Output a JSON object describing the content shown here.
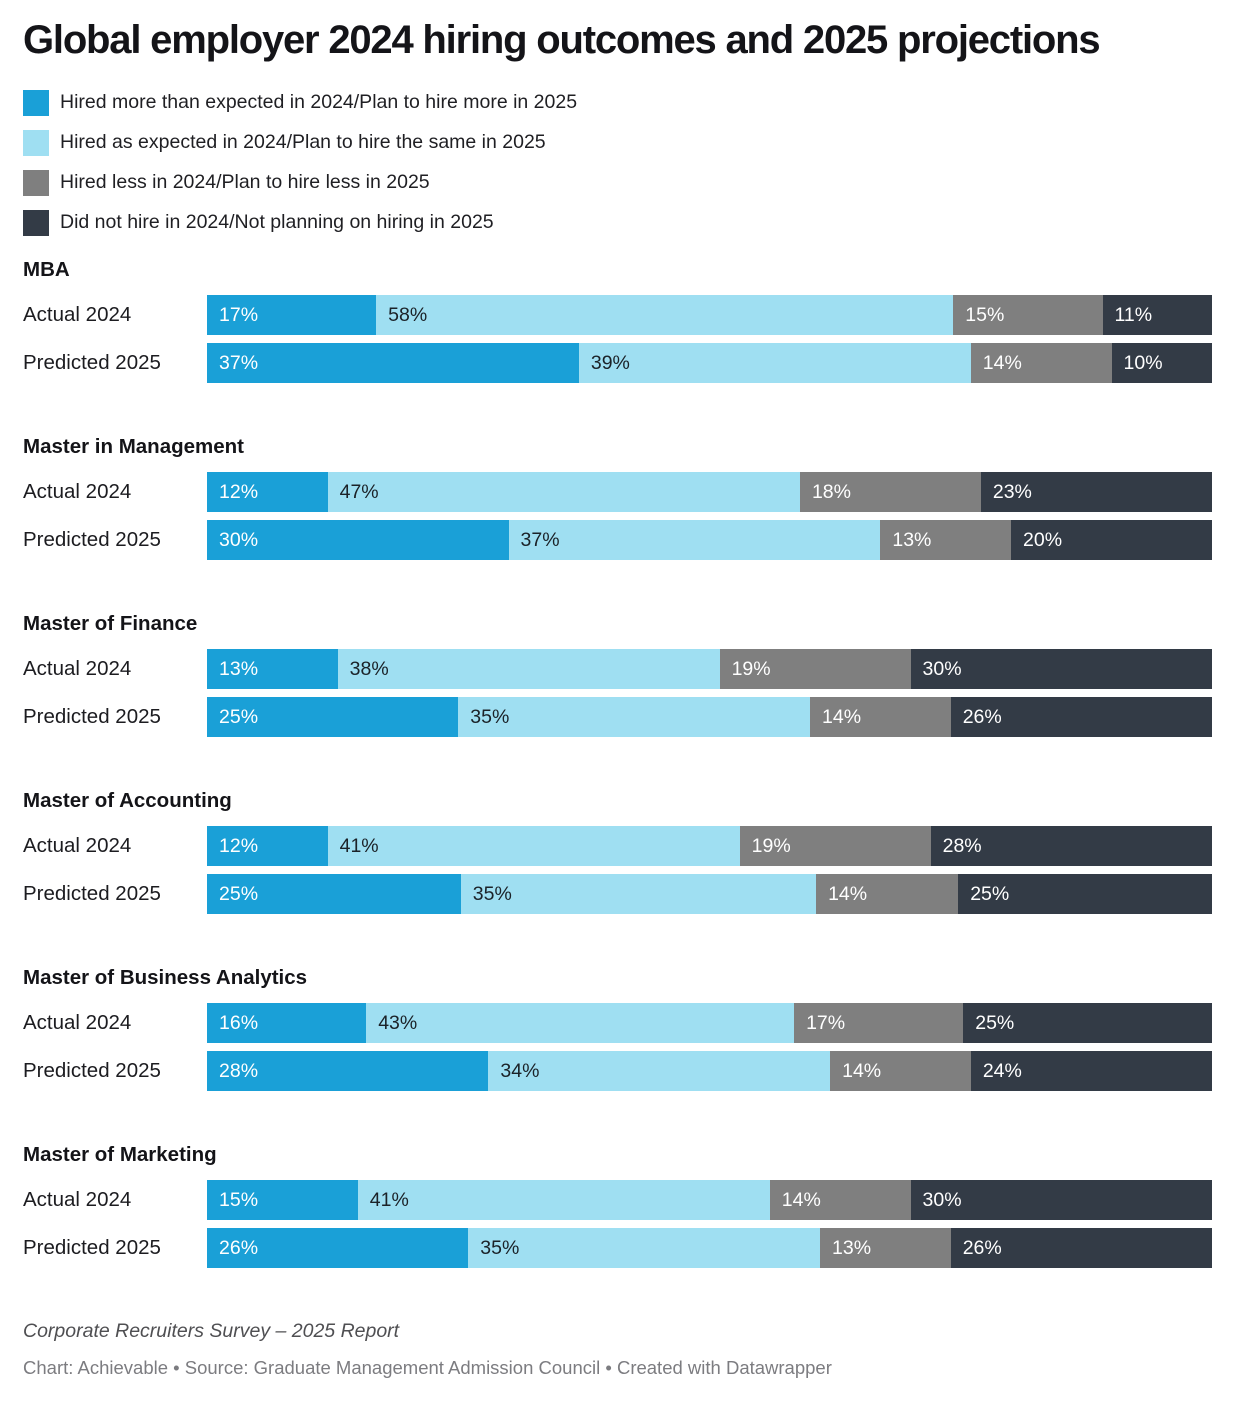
{
  "title": "Global employer 2024 hiring outcomes and 2025 projections",
  "colors": {
    "series": [
      "#1aa0d7",
      "#9fdff2",
      "#7f7f7f",
      "#333b46"
    ],
    "segment_label": [
      "#ffffff",
      "#1b2228",
      "#ffffff",
      "#ffffff"
    ],
    "background": "#ffffff"
  },
  "legend": {
    "items": [
      {
        "label": "Hired more than expected in 2024/Plan to hire more in 2025",
        "color": "#1aa0d7"
      },
      {
        "label": "Hired as expected in 2024/Plan to hire the same in 2025",
        "color": "#9fdff2"
      },
      {
        "label": "Hired less in 2024/Plan to hire less in 2025",
        "color": "#7f7f7f"
      },
      {
        "label": "Did not hire in 2024/Not planning on hiring in 2025",
        "color": "#333b46"
      }
    ]
  },
  "chart_data": {
    "type": "bar",
    "orientation": "horizontal",
    "stacked": true,
    "value_suffix": "%",
    "axis_range": [
      0,
      100
    ],
    "grid": false,
    "legend_position": "top-left",
    "series_labels": [
      "Hired more than expected in 2024/Plan to hire more in 2025",
      "Hired as expected in 2024/Plan to hire the same in 2025",
      "Hired less in 2024/Plan to hire less in 2025",
      "Did not hire in 2024/Not planning on hiring in 2025"
    ],
    "groups": [
      {
        "name": "MBA",
        "rows": [
          {
            "label": "Actual 2024",
            "values": [
              17,
              58,
              15,
              11
            ]
          },
          {
            "label": "Predicted 2025",
            "values": [
              37,
              39,
              14,
              10
            ]
          }
        ]
      },
      {
        "name": "Master in Management",
        "rows": [
          {
            "label": "Actual 2024",
            "values": [
              12,
              47,
              18,
              23
            ]
          },
          {
            "label": "Predicted 2025",
            "values": [
              30,
              37,
              13,
              20
            ]
          }
        ]
      },
      {
        "name": "Master of Finance",
        "rows": [
          {
            "label": "Actual 2024",
            "values": [
              13,
              38,
              19,
              30
            ]
          },
          {
            "label": "Predicted 2025",
            "values": [
              25,
              35,
              14,
              26
            ]
          }
        ]
      },
      {
        "name": "Master of Accounting",
        "rows": [
          {
            "label": "Actual 2024",
            "values": [
              12,
              41,
              19,
              28
            ]
          },
          {
            "label": "Predicted 2025",
            "values": [
              25,
              35,
              14,
              25
            ]
          }
        ]
      },
      {
        "name": "Master of Business Analytics",
        "rows": [
          {
            "label": "Actual 2024",
            "values": [
              16,
              43,
              17,
              25
            ]
          },
          {
            "label": "Predicted 2025",
            "values": [
              28,
              34,
              14,
              24
            ]
          }
        ]
      },
      {
        "name": "Master of Marketing",
        "rows": [
          {
            "label": "Actual 2024",
            "values": [
              15,
              41,
              14,
              30
            ]
          },
          {
            "label": "Predicted 2025",
            "values": [
              26,
              35,
              13,
              26
            ]
          }
        ]
      }
    ]
  },
  "footer": {
    "source_line": "Corporate Recruiters Survey – 2025 Report",
    "credit_line": "Chart: Achievable • Source: Graduate Management Admission Council • Created with Datawrapper"
  }
}
